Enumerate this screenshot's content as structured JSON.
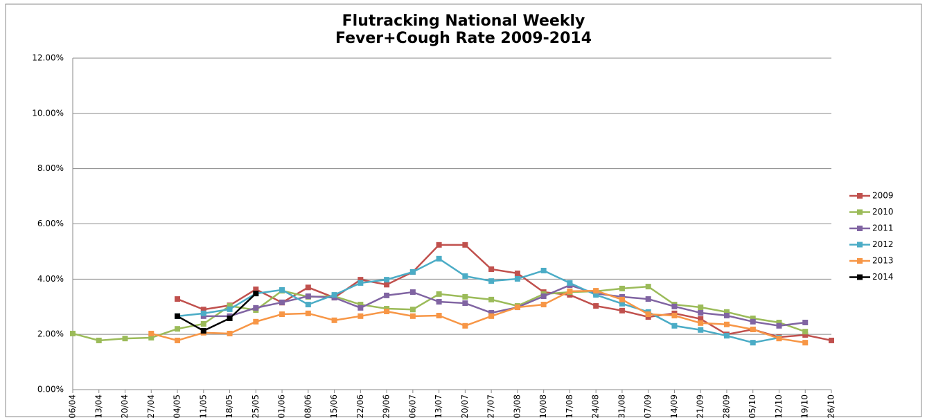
{
  "chart_data": {
    "type": "line",
    "title": "Flutracking National Weekly Fever+Cough Rate 2009-2014",
    "categories": [
      "06/04",
      "13/04",
      "20/04",
      "27/04",
      "04/05",
      "11/05",
      "18/05",
      "25/05",
      "01/06",
      "08/06",
      "15/06",
      "22/06",
      "29/06",
      "06/07",
      "13/07",
      "20/07",
      "27/07",
      "03/08",
      "10/08",
      "17/08",
      "24/08",
      "31/08",
      "07/09",
      "14/09",
      "21/09",
      "28/09",
      "05/10",
      "12/10",
      "19/10",
      "26/10"
    ],
    "series": [
      {
        "name": "2009",
        "color": "#c0504d",
        "values": [
          null,
          null,
          null,
          null,
          3.28,
          2.9,
          3.05,
          3.63,
          3.15,
          3.7,
          3.33,
          3.98,
          3.8,
          4.26,
          5.24,
          5.24,
          4.36,
          4.21,
          3.53,
          3.43,
          3.03,
          2.86,
          2.63,
          2.76,
          2.56,
          2.0,
          2.18,
          1.9,
          1.98,
          1.78
        ]
      },
      {
        "name": "2010",
        "color": "#9bbb59",
        "values": [
          2.03,
          1.78,
          1.85,
          1.88,
          2.2,
          2.38,
          3.03,
          2.88,
          3.58,
          3.36,
          3.38,
          3.08,
          2.93,
          2.9,
          3.46,
          3.36,
          3.26,
          3.03,
          3.46,
          3.53,
          3.56,
          3.66,
          3.73,
          3.08,
          2.98,
          2.81,
          2.58,
          2.43,
          2.1,
          null
        ]
      },
      {
        "name": "2011",
        "color": "#8064a2",
        "values": [
          null,
          null,
          null,
          null,
          null,
          2.66,
          2.66,
          2.96,
          3.16,
          3.38,
          3.33,
          2.96,
          3.41,
          3.53,
          3.18,
          3.13,
          2.78,
          2.98,
          3.38,
          3.78,
          3.48,
          3.36,
          3.28,
          3.01,
          2.78,
          2.68,
          2.46,
          2.31,
          2.43,
          null
        ]
      },
      {
        "name": "2012",
        "color": "#4bacc6",
        "values": [
          null,
          null,
          null,
          null,
          2.66,
          2.76,
          2.91,
          3.48,
          3.61,
          3.08,
          3.43,
          3.86,
          3.98,
          4.26,
          4.74,
          4.11,
          3.93,
          4.01,
          4.31,
          3.86,
          3.43,
          3.11,
          2.81,
          2.31,
          2.16,
          1.95,
          1.7,
          1.88,
          null,
          null
        ]
      },
      {
        "name": "2013",
        "color": "#f79646",
        "values": [
          null,
          null,
          null,
          2.03,
          1.78,
          2.06,
          2.03,
          2.46,
          2.73,
          2.76,
          2.51,
          2.66,
          2.83,
          2.66,
          2.68,
          2.31,
          2.66,
          2.98,
          3.08,
          3.56,
          3.58,
          3.26,
          2.73,
          2.68,
          2.41,
          2.36,
          2.18,
          1.85,
          1.7,
          null
        ]
      },
      {
        "name": "2014",
        "color": "#000000",
        "values": [
          null,
          null,
          null,
          null,
          2.66,
          2.13,
          2.58,
          3.48,
          null,
          null,
          null,
          null,
          null,
          null,
          null,
          null,
          null,
          null,
          null,
          null,
          null,
          null,
          null,
          null,
          null,
          null,
          null,
          null,
          null,
          null
        ]
      }
    ],
    "ylim": [
      0,
      12
    ],
    "yticks": [
      {
        "value": 0,
        "label": "0.00%"
      },
      {
        "value": 2,
        "label": "2.00%"
      },
      {
        "value": 4,
        "label": "4.00%"
      },
      {
        "value": 6,
        "label": "6.00%"
      },
      {
        "value": 8,
        "label": "8.00%"
      },
      {
        "value": 10,
        "label": "10.00%"
      },
      {
        "value": 12,
        "label": "12.00%"
      }
    ],
    "grid": true,
    "legend": "right"
  }
}
